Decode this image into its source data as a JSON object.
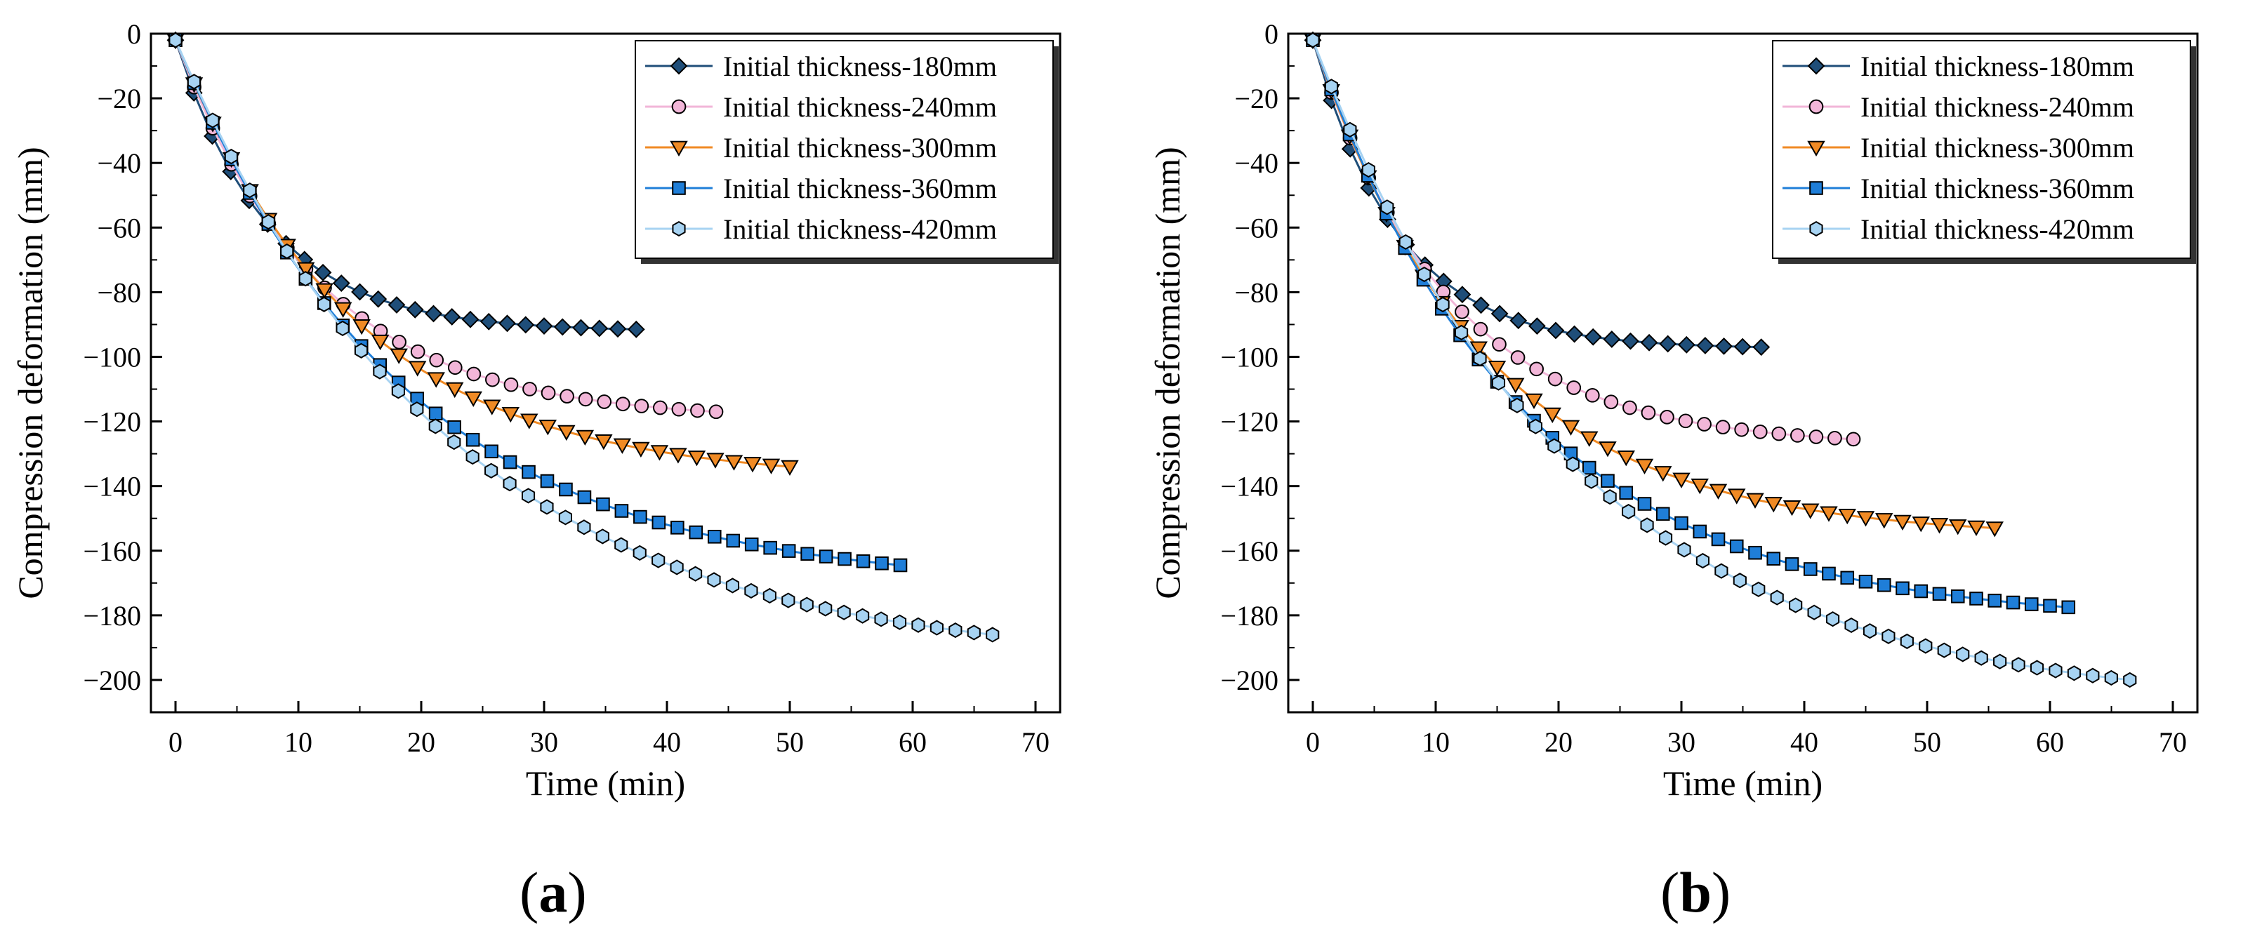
{
  "figure": {
    "captions": [
      "a",
      "b"
    ]
  },
  "chart_data": [
    {
      "type": "line",
      "panel": "a",
      "xlabel": "Time (min)",
      "ylabel": "Compression deformation (mm)",
      "xlim": [
        -2,
        72
      ],
      "ylim": [
        -210,
        0
      ],
      "xticks": [
        0,
        10,
        20,
        30,
        40,
        50,
        60,
        70
      ],
      "yticks": [
        0,
        -20,
        -40,
        -60,
        -80,
        -100,
        -120,
        -140,
        -160,
        -180,
        -200
      ],
      "legend_position": "top-right",
      "grid": false,
      "series": [
        {
          "name": "Initial thickness-180mm",
          "color": "#1f4e79",
          "marker": "diamond",
          "max_x": 37.5,
          "final": -91.5,
          "tau": 7.5
        },
        {
          "name": "Initial thickness-240mm",
          "color": "#f2b6d8",
          "marker": "circle",
          "max_x": 44,
          "final": -117,
          "tau": 11.5
        },
        {
          "name": "Initial thickness-300mm",
          "color": "#f08a24",
          "marker": "triangle-down",
          "max_x": 50,
          "final": -134,
          "tau": 14.5
        },
        {
          "name": "Initial thickness-360mm",
          "color": "#1f7ed8",
          "marker": "square",
          "max_x": 59,
          "final": -164.5,
          "tau": 18.5
        },
        {
          "name": "Initial thickness-420mm",
          "color": "#a7d3f2",
          "marker": "hexagon",
          "max_x": 66.5,
          "final": -186,
          "tau": 22
        }
      ]
    },
    {
      "type": "line",
      "panel": "b",
      "xlabel": "Time (min)",
      "ylabel": "Compression deformation (mm)",
      "xlim": [
        -2,
        72
      ],
      "ylim": [
        -210,
        0
      ],
      "xticks": [
        0,
        10,
        20,
        30,
        40,
        50,
        60,
        70
      ],
      "yticks": [
        0,
        -20,
        -40,
        -60,
        -80,
        -100,
        -120,
        -140,
        -160,
        -180,
        -200
      ],
      "legend_position": "top-right",
      "grid": false,
      "series": [
        {
          "name": "Initial thickness-180mm",
          "color": "#1f4e79",
          "marker": "diamond",
          "max_x": 36.5,
          "final": -97,
          "tau": 7
        },
        {
          "name": "Initial thickness-240mm",
          "color": "#f2b6d8",
          "marker": "circle",
          "max_x": 44,
          "final": -125.5,
          "tau": 11
        },
        {
          "name": "Initial thickness-300mm",
          "color": "#f08a24",
          "marker": "triangle-down",
          "max_x": 55.5,
          "final": -153,
          "tau": 14
        },
        {
          "name": "Initial thickness-360mm",
          "color": "#1f7ed8",
          "marker": "square",
          "max_x": 61.5,
          "final": -177.5,
          "tau": 17
        },
        {
          "name": "Initial thickness-420mm",
          "color": "#a7d3f2",
          "marker": "hexagon",
          "max_x": 66.5,
          "final": -200,
          "tau": 21
        }
      ]
    }
  ]
}
